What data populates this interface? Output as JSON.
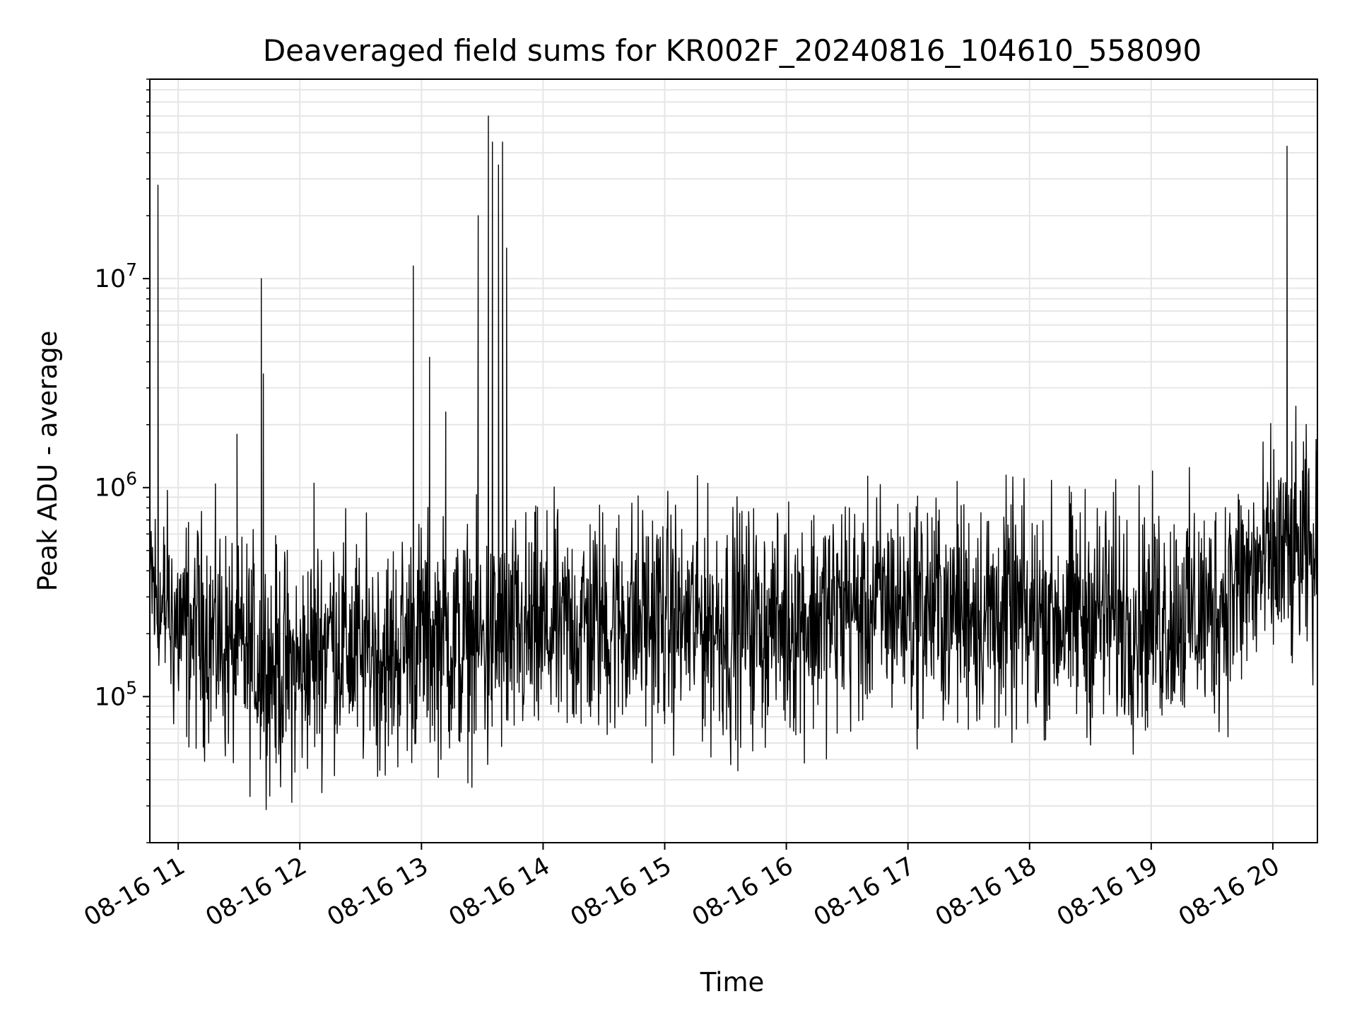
{
  "chart_data": {
    "type": "line",
    "title": "Deaveraged field sums for KR002F_20240816_104610_558090",
    "xlabel": "Time",
    "ylabel": "Peak ADU - average",
    "yscale": "log",
    "ylim": [
      20000,
      90000000
    ],
    "xlim": [
      "2024-08-16 10:46",
      "2024-08-16 20:22"
    ],
    "grid": true,
    "line_color": "#000000",
    "x_ticks": [
      "08-16 11",
      "08-16 12",
      "08-16 13",
      "08-16 14",
      "08-16 15",
      "08-16 16",
      "08-16 17",
      "08-16 18",
      "08-16 19",
      "08-16 20"
    ],
    "y_ticks": [
      {
        "base": "10",
        "exp": "5",
        "value": 100000
      },
      {
        "base": "10",
        "exp": "6",
        "value": 1000000
      },
      {
        "base": "10",
        "exp": "7",
        "value": 10000000
      }
    ],
    "series": [
      {
        "x": [
          "2024-08-16 10:46",
          "2024-08-16 10:50",
          "2024-08-16 11:00",
          "2024-08-16 11:15",
          "2024-08-16 11:30",
          "2024-08-16 11:45",
          "2024-08-16 12:00",
          "2024-08-16 12:15",
          "2024-08-16 12:30",
          "2024-08-16 12:45",
          "2024-08-16 13:00",
          "2024-08-16 13:15",
          "2024-08-16 13:30",
          "2024-08-16 13:45",
          "2024-08-16 14:00",
          "2024-08-16 14:30",
          "2024-08-16 15:00",
          "2024-08-16 15:30",
          "2024-08-16 16:00",
          "2024-08-16 16:30",
          "2024-08-16 17:00",
          "2024-08-16 17:30",
          "2024-08-16 18:00",
          "2024-08-16 18:30",
          "2024-08-16 19:00",
          "2024-08-16 19:30",
          "2024-08-16 19:45",
          "2024-08-16 20:00",
          "2024-08-16 20:15",
          "2024-08-16 20:22"
        ],
        "values": [
          400000,
          250000,
          220000,
          200000,
          160000,
          140000,
          130000,
          200000,
          160000,
          160000,
          200000,
          180000,
          180000,
          190000,
          200000,
          230000,
          240000,
          220000,
          230000,
          260000,
          280000,
          260000,
          240000,
          250000,
          240000,
          260000,
          350000,
          450000,
          480000,
          450000
        ]
      }
    ],
    "spikes": [
      {
        "x": "2024-08-16 10:50",
        "value": 28000000
      },
      {
        "x": "2024-08-16 11:29",
        "value": 1800000
      },
      {
        "x": "2024-08-16 11:41",
        "value": 10000000
      },
      {
        "x": "2024-08-16 11:42",
        "value": 3500000
      },
      {
        "x": "2024-08-16 12:07",
        "value": 1050000
      },
      {
        "x": "2024-08-16 12:56",
        "value": 11500000
      },
      {
        "x": "2024-08-16 13:04",
        "value": 4200000
      },
      {
        "x": "2024-08-16 13:12",
        "value": 2300000
      },
      {
        "x": "2024-08-16 13:28",
        "value": 20000000
      },
      {
        "x": "2024-08-16 13:33",
        "value": 60000000
      },
      {
        "x": "2024-08-16 13:35",
        "value": 45000000
      },
      {
        "x": "2024-08-16 13:38",
        "value": 35000000
      },
      {
        "x": "2024-08-16 13:40",
        "value": 45000000
      },
      {
        "x": "2024-08-16 13:42",
        "value": 14000000
      },
      {
        "x": "2024-08-16 20:07",
        "value": 43000000
      }
    ]
  }
}
